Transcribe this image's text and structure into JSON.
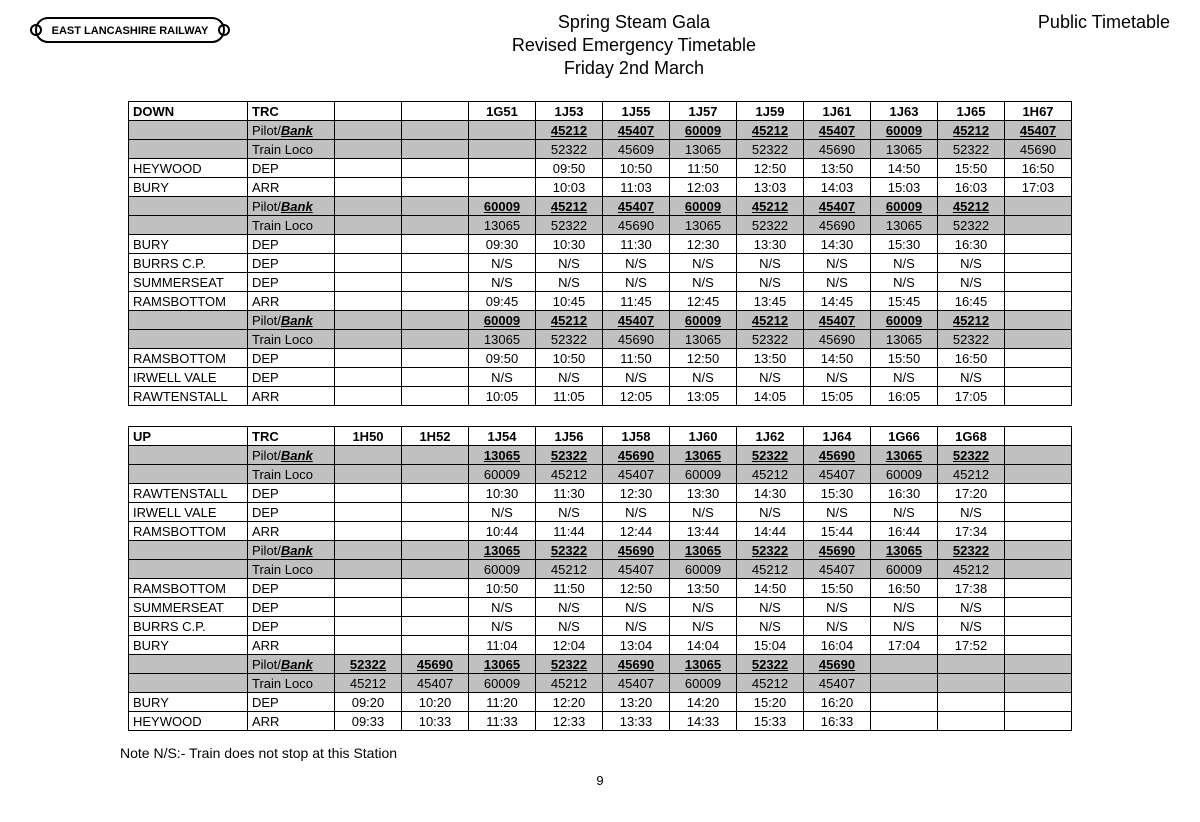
{
  "header": {
    "logo_text": "EAST LANCASHIRE RAILWAY",
    "title1": "Spring Steam Gala",
    "title2": "Revised Emergency Timetable",
    "title3": "Friday 2nd March",
    "public": "Public Timetable"
  },
  "footer": {
    "note": "Note N/S:-  Train does not stop at this Station",
    "page": "9"
  },
  "labels": {
    "down": "DOWN",
    "up": "UP",
    "trc": "TRC",
    "pilot_bank_pre": "Pilot/",
    "pilot_bank_em": "Bank",
    "train_loco": "Train Loco",
    "dep": "DEP",
    "arr": "ARR"
  },
  "down_cols": [
    "1G51",
    "1J53",
    "1J55",
    "1J57",
    "1J59",
    "1J61",
    "1J63",
    "1J65",
    "1H67"
  ],
  "down_sec1": {
    "pilot": [
      "",
      "45212",
      "45407",
      "60009",
      "45212",
      "45407",
      "60009",
      "45212",
      "45407"
    ],
    "loco": [
      "",
      "52322",
      "45609",
      "13065",
      "52322",
      "45690",
      "13065",
      "52322",
      "45690"
    ],
    "rows": [
      {
        "station": "HEYWOOD",
        "type": "DEP",
        "v": [
          "",
          "09:50",
          "10:50",
          "11:50",
          "12:50",
          "13:50",
          "14:50",
          "15:50",
          "16:50"
        ]
      },
      {
        "station": "BURY",
        "type": "ARR",
        "v": [
          "",
          "10:03",
          "11:03",
          "12:03",
          "13:03",
          "14:03",
          "15:03",
          "16:03",
          "17:03"
        ]
      }
    ]
  },
  "down_sec2": {
    "pilot": [
      "60009",
      "45212",
      "45407",
      "60009",
      "45212",
      "45407",
      "60009",
      "45212",
      ""
    ],
    "loco": [
      "13065",
      "52322",
      "45690",
      "13065",
      "52322",
      "45690",
      "13065",
      "52322",
      ""
    ],
    "rows": [
      {
        "station": "BURY",
        "type": "DEP",
        "v": [
          "09:30",
          "10:30",
          "11:30",
          "12:30",
          "13:30",
          "14:30",
          "15:30",
          "16:30",
          ""
        ]
      },
      {
        "station": "BURRS C.P.",
        "type": "DEP",
        "v": [
          "N/S",
          "N/S",
          "N/S",
          "N/S",
          "N/S",
          "N/S",
          "N/S",
          "N/S",
          ""
        ]
      },
      {
        "station": "SUMMERSEAT",
        "type": "DEP",
        "v": [
          "N/S",
          "N/S",
          "N/S",
          "N/S",
          "N/S",
          "N/S",
          "N/S",
          "N/S",
          ""
        ]
      },
      {
        "station": "RAMSBOTTOM",
        "type": "ARR",
        "v": [
          "09:45",
          "10:45",
          "11:45",
          "12:45",
          "13:45",
          "14:45",
          "15:45",
          "16:45",
          ""
        ]
      }
    ]
  },
  "down_sec3": {
    "pilot": [
      "60009",
      "45212",
      "45407",
      "60009",
      "45212",
      "45407",
      "60009",
      "45212",
      ""
    ],
    "loco": [
      "13065",
      "52322",
      "45690",
      "13065",
      "52322",
      "45690",
      "13065",
      "52322",
      ""
    ],
    "rows": [
      {
        "station": "RAMSBOTTOM",
        "type": "DEP",
        "v": [
          "09:50",
          "10:50",
          "11:50",
          "12:50",
          "13:50",
          "14:50",
          "15:50",
          "16:50",
          ""
        ]
      },
      {
        "station": "IRWELL VALE",
        "type": "DEP",
        "v": [
          "N/S",
          "N/S",
          "N/S",
          "N/S",
          "N/S",
          "N/S",
          "N/S",
          "N/S",
          ""
        ]
      },
      {
        "station": "RAWTENSTALL",
        "type": "ARR",
        "v": [
          "10:05",
          "11:05",
          "12:05",
          "13:05",
          "14:05",
          "15:05",
          "16:05",
          "17:05",
          ""
        ]
      }
    ]
  },
  "up_cols": [
    "1H50",
    "1H52",
    "1J54",
    "1J56",
    "1J58",
    "1J60",
    "1J62",
    "1J64",
    "1G66",
    "1G68",
    ""
  ],
  "up_sec1": {
    "pilot": [
      "",
      "",
      "13065",
      "52322",
      "45690",
      "13065",
      "52322",
      "45690",
      "13065",
      "52322",
      ""
    ],
    "loco": [
      "",
      "",
      "60009",
      "45212",
      "45407",
      "60009",
      "45212",
      "45407",
      "60009",
      "45212",
      ""
    ],
    "rows": [
      {
        "station": "RAWTENSTALL",
        "type": "DEP",
        "v": [
          "",
          "",
          "10:30",
          "11:30",
          "12:30",
          "13:30",
          "14:30",
          "15:30",
          "16:30",
          "17:20",
          ""
        ]
      },
      {
        "station": "IRWELL VALE",
        "type": "DEP",
        "v": [
          "",
          "",
          "N/S",
          "N/S",
          "N/S",
          "N/S",
          "N/S",
          "N/S",
          "N/S",
          "N/S",
          ""
        ]
      },
      {
        "station": "RAMSBOTTOM",
        "type": "ARR",
        "v": [
          "",
          "",
          "10:44",
          "11:44",
          "12:44",
          "13:44",
          "14:44",
          "15:44",
          "16:44",
          "17:34",
          ""
        ]
      }
    ]
  },
  "up_sec2": {
    "pilot": [
      "",
      "",
      "13065",
      "52322",
      "45690",
      "13065",
      "52322",
      "45690",
      "13065",
      "52322",
      ""
    ],
    "loco": [
      "",
      "",
      "60009",
      "45212",
      "45407",
      "60009",
      "45212",
      "45407",
      "60009",
      "45212",
      ""
    ],
    "rows": [
      {
        "station": "RAMSBOTTOM",
        "type": "DEP",
        "v": [
          "",
          "",
          "10:50",
          "11:50",
          "12:50",
          "13:50",
          "14:50",
          "15:50",
          "16:50",
          "17:38",
          ""
        ]
      },
      {
        "station": "SUMMERSEAT",
        "type": "DEP",
        "v": [
          "",
          "",
          "N/S",
          "N/S",
          "N/S",
          "N/S",
          "N/S",
          "N/S",
          "N/S",
          "N/S",
          ""
        ]
      },
      {
        "station": "BURRS C.P.",
        "type": "DEP",
        "v": [
          "",
          "",
          "N/S",
          "N/S",
          "N/S",
          "N/S",
          "N/S",
          "N/S",
          "N/S",
          "N/S",
          ""
        ]
      },
      {
        "station": "BURY",
        "type": "ARR",
        "v": [
          "",
          "",
          "11:04",
          "12:04",
          "13:04",
          "14:04",
          "15:04",
          "16:04",
          "17:04",
          "17:52",
          ""
        ]
      }
    ]
  },
  "up_sec3": {
    "pilot": [
      "52322",
      "45690",
      "13065",
      "52322",
      "45690",
      "13065",
      "52322",
      "45690",
      "",
      "",
      ""
    ],
    "loco": [
      "45212",
      "45407",
      "60009",
      "45212",
      "45407",
      "60009",
      "45212",
      "45407",
      "",
      "",
      ""
    ],
    "rows": [
      {
        "station": "BURY",
        "type": "DEP",
        "v": [
          "09:20",
          "10:20",
          "11:20",
          "12:20",
          "13:20",
          "14:20",
          "15:20",
          "16:20",
          "",
          "",
          ""
        ]
      },
      {
        "station": "HEYWOOD",
        "type": "ARR",
        "v": [
          "09:33",
          "10:33",
          "11:33",
          "12:33",
          "13:33",
          "14:33",
          "15:33",
          "16:33",
          "",
          "",
          ""
        ]
      }
    ]
  }
}
